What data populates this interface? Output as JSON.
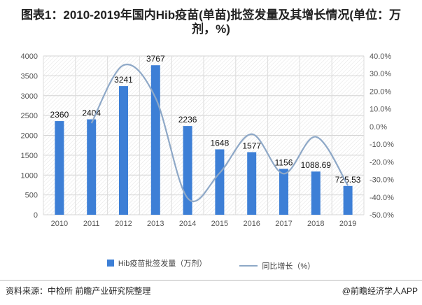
{
  "title": "图表1：2010-2019年国内Hib疫苗(单苗)批签发量及其增长情况(单位：万剂，%)",
  "footer": {
    "source": "资料来源：中检所 前瞻产业研究院整理",
    "brand": "@前瞻经济学人APP"
  },
  "chart_data": {
    "type": "bar+line",
    "title": "图表1：2010-2019年国内Hib疫苗(单苗)批签发量及其增长情况(单位：万剂，%)",
    "categories": [
      "2010",
      "2011",
      "2012",
      "2013",
      "2014",
      "2015",
      "2016",
      "2017",
      "2018",
      "2019"
    ],
    "series": [
      {
        "name": "Hib疫苗批签发量（万剂）",
        "type": "bar",
        "axis": "left",
        "color": "#3d7fd6",
        "values": [
          2360,
          2404,
          3241,
          3767,
          2236,
          1648,
          1577,
          1156,
          1088.69,
          725.53
        ],
        "labels": [
          "2360",
          "2404",
          "3241",
          "3767",
          "2236",
          "1648",
          "1577",
          "1156",
          "1088.69",
          "725.53"
        ]
      },
      {
        "name": "同比增长（%）",
        "type": "line",
        "axis": "right",
        "color": "#8ea8c7",
        "smooth": true,
        "values": [
          null,
          1.9,
          34.8,
          16.2,
          -40.6,
          -26.3,
          -4.3,
          -26.7,
          -5.8,
          -33.4
        ]
      }
    ],
    "left_axis": {
      "ylim": [
        0,
        4000
      ],
      "ticks": [
        "0",
        "500",
        "1000",
        "1500",
        "2000",
        "2500",
        "3000",
        "3500",
        "4000"
      ]
    },
    "right_axis": {
      "ylim": [
        -50,
        40
      ],
      "ticks": [
        "-50.0%",
        "-40.0%",
        "-30.0%",
        "-20.0%",
        "-10.0%",
        "0.0%",
        "10.0%",
        "20.0%",
        "30.0%",
        "40.0%"
      ]
    },
    "grid": true,
    "legend": "bottom"
  }
}
